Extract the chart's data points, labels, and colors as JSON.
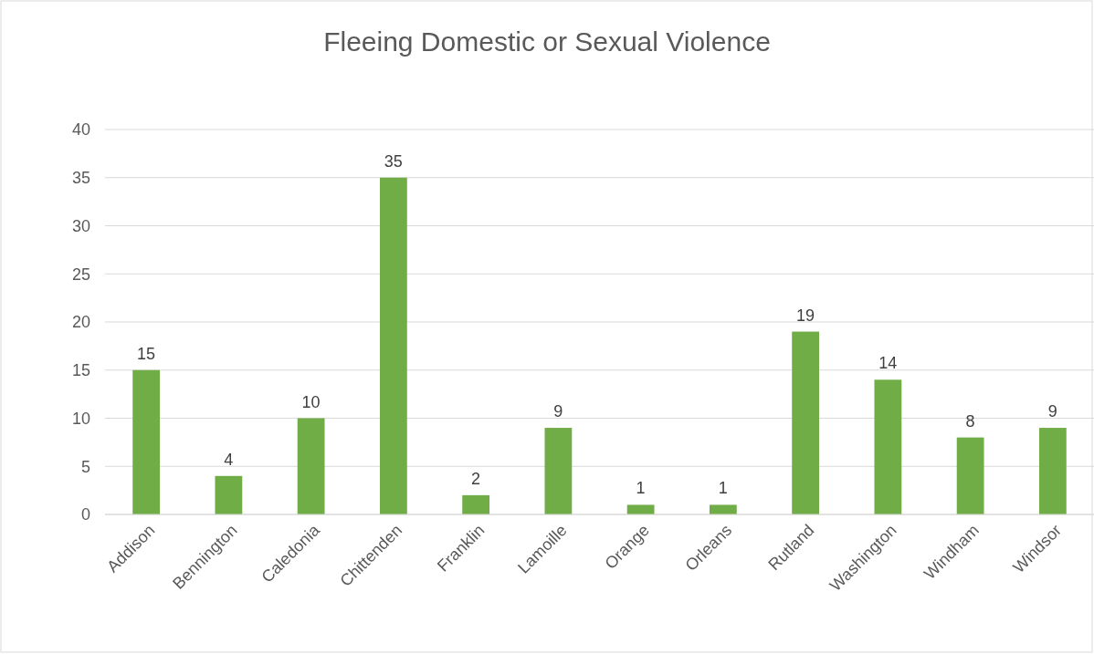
{
  "chart_data": {
    "type": "bar",
    "title": "Fleeing Domestic or Sexual Violence",
    "categories": [
      "Addison",
      "Bennington",
      "Caledonia",
      "Chittenden",
      "Franklin",
      "Lamoille",
      "Orange",
      "Orleans",
      "Rutland",
      "Washington",
      "Windham",
      "Windsor"
    ],
    "values": [
      15,
      4,
      10,
      35,
      2,
      9,
      1,
      1,
      19,
      14,
      8,
      9
    ],
    "color": "#70ad47",
    "ylim": [
      0,
      40
    ],
    "yticks": [
      0,
      5,
      10,
      15,
      20,
      25,
      30,
      35,
      40
    ],
    "grid": "y",
    "data_labels": true
  }
}
